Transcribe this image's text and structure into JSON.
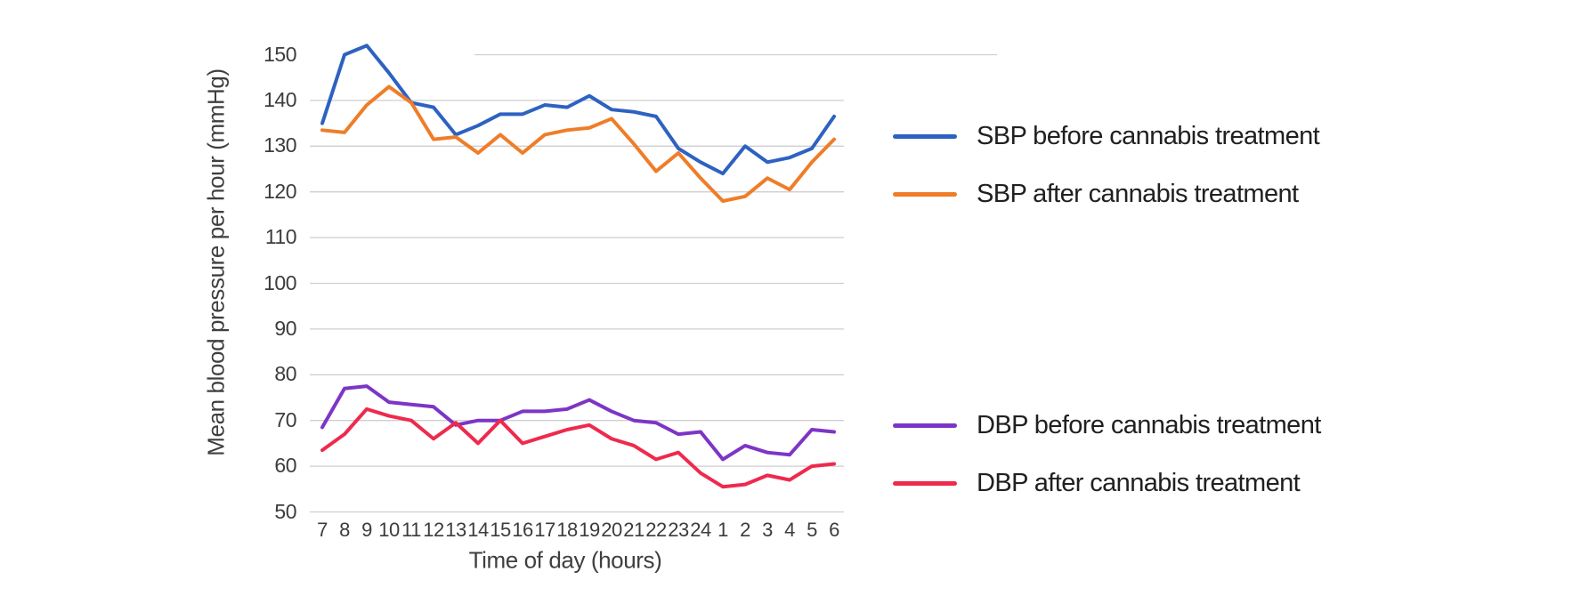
{
  "figure": {
    "background": "#ffffff"
  },
  "chart_data": {
    "type": "line",
    "title": "",
    "xlabel": "Time of day (hours)",
    "ylabel": "Mean blood pressure per hour (mmHg)",
    "x_categories": [
      "7",
      "8",
      "9",
      "10",
      "11",
      "12",
      "13",
      "14",
      "15",
      "16",
      "17",
      "18",
      "19",
      "20",
      "21",
      "22",
      "23",
      "24",
      "1",
      "2",
      "3",
      "4",
      "5",
      "6"
    ],
    "y_ticks": [
      50,
      60,
      70,
      80,
      90,
      100,
      110,
      120,
      130,
      140,
      150
    ],
    "ylim": [
      50,
      152
    ],
    "grid": "horizontal-only",
    "legend_position": "right",
    "series": [
      {
        "name": "SBP before cannabis treatment",
        "color": "#2d62c1",
        "values": [
          135,
          150,
          152,
          146,
          139.5,
          138.5,
          132.5,
          134.5,
          137,
          137,
          139,
          138.5,
          141,
          138,
          137.5,
          136.5,
          129.5,
          126.5,
          124,
          130,
          126.5,
          127.5,
          129.5,
          136.5
        ]
      },
      {
        "name": "SBP after cannabis treatment",
        "color": "#ef7d28",
        "values": [
          133.5,
          133,
          139,
          143,
          139.5,
          131.5,
          132,
          128.5,
          132.5,
          128.5,
          132.5,
          133.5,
          134,
          136,
          130.5,
          124.5,
          128.5,
          123,
          118,
          119,
          123,
          120.5,
          126.5,
          131.5
        ]
      },
      {
        "name": "DBP before cannabis treatment",
        "color": "#7d35c6",
        "values": [
          68.5,
          77,
          77.5,
          74,
          73.5,
          73,
          69,
          70,
          70,
          72,
          72,
          72.5,
          74.5,
          72,
          70,
          69.5,
          67,
          67.5,
          61.5,
          64.5,
          63,
          62.5,
          68,
          67.5
        ]
      },
      {
        "name": "DBP after cannabis treatment",
        "color": "#ee2a4d",
        "values": [
          63.5,
          67,
          72.5,
          71,
          70,
          66,
          69.5,
          65,
          70,
          65,
          66.5,
          68,
          69,
          66,
          64.5,
          61.5,
          63,
          58.5,
          55.5,
          56,
          58,
          57,
          60,
          60.5
        ]
      }
    ],
    "colors": {
      "gridline": "#cfcfcf",
      "tick_text": "#3c3c3c",
      "axis_title_text": "#3f3f3f",
      "legend_text": "#202020"
    }
  }
}
